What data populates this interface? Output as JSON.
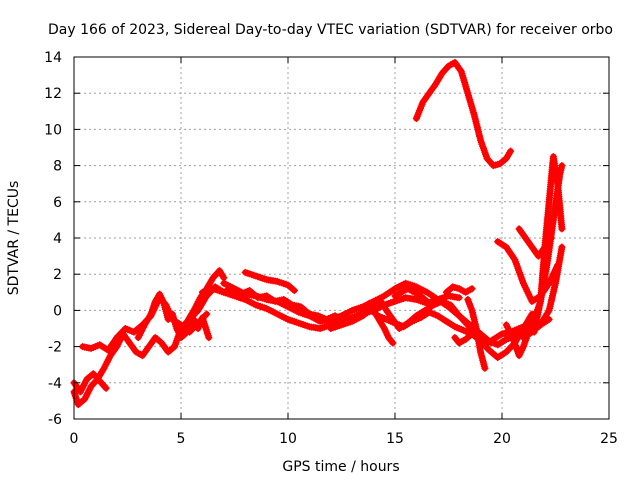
{
  "chart_data": {
    "type": "scatter",
    "title": "Day 166 of 2023, Sidereal Day-to-day VTEC variation (SDTVAR) for receiver orbo",
    "xlabel": "GPS time / hours",
    "ylabel": "SDTVAR / TECUs",
    "xlim": [
      0,
      25
    ],
    "ylim": [
      -6,
      14
    ],
    "xticks": [
      "0",
      "5",
      "10",
      "15",
      "20",
      "25"
    ],
    "yticks": [
      "-6",
      "-4",
      "-2",
      "0",
      "2",
      "4",
      "6",
      "8",
      "10",
      "12",
      "14"
    ],
    "xtick_values": [
      0,
      5,
      10,
      15,
      20,
      25
    ],
    "ytick_values": [
      -6,
      -4,
      -2,
      0,
      2,
      4,
      6,
      8,
      10,
      12,
      14
    ],
    "grid": true,
    "marker": "+",
    "color": "#ff0000",
    "traces": [
      {
        "x": [
          0.0,
          0.2,
          0.5,
          0.8,
          1.1,
          1.4,
          1.7,
          2.0,
          2.3,
          2.6,
          2.9,
          3.2,
          3.5,
          3.8,
          4.1,
          4.4,
          4.7,
          5.0,
          5.3,
          5.6,
          5.9,
          6.2,
          6.5,
          6.8,
          7.0
        ],
        "y": [
          -4.5,
          -5.2,
          -4.9,
          -4.2,
          -3.8,
          -3.2,
          -2.5,
          -2.0,
          -1.3,
          -1.8,
          -2.3,
          -2.5,
          -2.0,
          -1.5,
          -1.8,
          -2.3,
          -2.0,
          -1.0,
          -0.6,
          0.0,
          0.7,
          1.2,
          1.8,
          2.2,
          1.8
        ]
      },
      {
        "x": [
          0.0,
          0.3,
          0.6,
          0.9,
          1.2,
          1.5
        ],
        "y": [
          -4.0,
          -4.5,
          -3.8,
          -3.5,
          -3.9,
          -4.3
        ]
      },
      {
        "x": [
          0.4,
          0.8,
          1.2,
          1.6,
          2.0,
          2.4,
          2.8,
          3.2,
          3.6,
          4.0,
          4.3,
          4.6,
          5.0,
          5.4,
          5.8,
          6.2
        ],
        "y": [
          -2.0,
          -2.1,
          -1.9,
          -2.2,
          -1.5,
          -1.0,
          -1.2,
          -0.8,
          -0.3,
          0.7,
          0.3,
          -0.5,
          -0.8,
          -1.2,
          -0.7,
          -0.2
        ]
      },
      {
        "x": [
          3.0,
          3.3,
          3.6,
          3.8,
          4.0,
          4.2,
          4.4,
          4.6,
          4.8,
          5.0,
          5.2,
          5.4,
          5.6,
          5.8,
          6.0,
          6.3
        ],
        "y": [
          -1.5,
          -0.8,
          -0.2,
          0.5,
          0.9,
          0.4,
          -0.5,
          -0.2,
          -1.0,
          -1.5,
          -1.3,
          -0.8,
          -0.5,
          -1.0,
          -0.4,
          -1.5
        ]
      },
      {
        "x": [
          5.0,
          5.4,
          5.8,
          6.2,
          6.6,
          7.0,
          7.4,
          7.8,
          8.2,
          8.6,
          9.0,
          9.4,
          9.8,
          10.2,
          10.6,
          11.0,
          11.4,
          11.8,
          12.2,
          12.6,
          13.0,
          13.4,
          13.8,
          14.2,
          14.6,
          15.0,
          15.4,
          15.8,
          16.2,
          16.6,
          17.0,
          17.4,
          17.8,
          18.2,
          18.6,
          19.0,
          19.4,
          19.8,
          20.2,
          20.6,
          21.0,
          21.4,
          21.8,
          22.2
        ],
        "y": [
          -1.0,
          -0.5,
          0.0,
          0.8,
          1.3,
          1.0,
          1.2,
          0.9,
          1.1,
          0.7,
          0.8,
          0.5,
          0.6,
          0.3,
          0.2,
          -0.2,
          -0.3,
          -0.5,
          -0.3,
          -0.6,
          -0.4,
          -0.2,
          0.1,
          -0.3,
          -0.5,
          -0.7,
          -0.9,
          -0.6,
          -0.4,
          -0.1,
          -0.3,
          -0.6,
          -0.9,
          -1.1,
          -1.3,
          -1.5,
          -1.7,
          -1.9,
          -1.6,
          -1.4,
          -1.2,
          -1.0,
          -0.8,
          -0.5
        ]
      },
      {
        "x": [
          6.0,
          6.5,
          7.0,
          7.5,
          8.0,
          8.5,
          9.0,
          9.5,
          10.0,
          10.5,
          11.0,
          11.5,
          12.0,
          12.5,
          13.0,
          13.5,
          14.0,
          14.5,
          15.0,
          15.5,
          16.0,
          16.5,
          17.0,
          17.5,
          18.0
        ],
        "y": [
          1.0,
          1.2,
          1.0,
          0.8,
          0.6,
          0.3,
          0.1,
          -0.2,
          -0.5,
          -0.7,
          -0.9,
          -1.0,
          -0.8,
          -0.6,
          -0.4,
          -0.2,
          0.0,
          0.3,
          0.5,
          0.7,
          0.6,
          0.4,
          0.6,
          0.8,
          0.7
        ]
      },
      {
        "x": [
          7.0,
          7.5,
          8.0,
          8.5,
          9.0,
          9.5,
          10.0,
          10.5,
          11.0,
          11.5,
          12.0,
          12.5,
          13.0,
          13.5,
          14.0,
          14.5,
          15.0,
          15.5,
          16.0,
          16.5,
          17.0,
          17.5,
          18.0,
          18.5,
          19.0,
          19.5
        ],
        "y": [
          1.5,
          1.2,
          0.9,
          0.8,
          0.6,
          0.5,
          0.2,
          -0.1,
          -0.3,
          -0.6,
          -0.5,
          -0.3,
          0.0,
          0.2,
          0.5,
          0.8,
          1.2,
          1.5,
          1.3,
          1.0,
          0.6,
          0.2,
          -0.3,
          -0.8,
          -1.3,
          -1.8
        ]
      },
      {
        "x": [
          8.0,
          8.5,
          9.0,
          9.5,
          10.0,
          10.3
        ],
        "y": [
          2.1,
          1.9,
          1.7,
          1.6,
          1.4,
          1.1
        ]
      },
      {
        "x": [
          12.0,
          12.5,
          13.0,
          13.5,
          14.0,
          14.3,
          14.6,
          14.9,
          15.2,
          15.6,
          16.0,
          16.4,
          16.8,
          17.2,
          17.6,
          18.0,
          18.4,
          18.8,
          19.2,
          19.6,
          20.0,
          20.4,
          20.8,
          21.2
        ],
        "y": [
          -1.0,
          -0.8,
          -0.6,
          -0.3,
          0.2,
          0.6,
          0.0,
          -0.5,
          -1.0,
          -0.7,
          -0.3,
          0.0,
          0.3,
          0.5,
          0.3,
          -0.3,
          -0.8,
          -1.4,
          -1.9,
          -1.6,
          -1.3,
          -1.2,
          -1.0,
          -0.8
        ]
      },
      {
        "x": [
          13.8,
          14.1,
          14.3,
          14.5,
          14.7,
          14.9
        ],
        "y": [
          0.4,
          -0.2,
          -0.6,
          -1.0,
          -1.5,
          -1.8
        ]
      },
      {
        "x": [
          15.0,
          15.3,
          15.6,
          15.9,
          16.2,
          16.5,
          16.8
        ],
        "y": [
          0.8,
          1.0,
          1.2,
          1.0,
          0.8,
          0.5,
          0.3
        ]
      },
      {
        "x": [
          17.8,
          18.0,
          18.3,
          18.6,
          19.0,
          19.4,
          19.8,
          20.2,
          20.6,
          21.0,
          21.4
        ],
        "y": [
          -1.5,
          -1.8,
          -1.6,
          -1.3,
          -1.7,
          -2.2,
          -2.6,
          -2.3,
          -1.8,
          -1.0,
          -0.2
        ]
      },
      {
        "x": [
          18.4,
          18.6,
          18.8,
          19.0,
          19.2
        ],
        "y": [
          0.6,
          0.0,
          -1.0,
          -2.3,
          -3.2
        ]
      },
      {
        "x": [
          17.4,
          17.7,
          18.0,
          18.3,
          18.6
        ],
        "y": [
          1.0,
          1.3,
          1.2,
          1.0,
          1.2
        ]
      },
      {
        "x": [
          16.0,
          16.3,
          16.6,
          16.9,
          17.2,
          17.5,
          17.8,
          18.1,
          18.4,
          18.7,
          19.0,
          19.3,
          19.6,
          19.9,
          20.2,
          20.4
        ],
        "y": [
          10.6,
          11.5,
          12.0,
          12.5,
          13.1,
          13.5,
          13.7,
          13.2,
          12.0,
          10.8,
          9.4,
          8.4,
          8.0,
          8.1,
          8.4,
          8.8
        ]
      },
      {
        "x": [
          19.8,
          20.2,
          20.6,
          21.0,
          21.4,
          21.8,
          22.2,
          22.6
        ],
        "y": [
          3.8,
          3.5,
          2.8,
          1.5,
          0.5,
          0.8,
          1.5,
          2.5
        ]
      },
      {
        "x": [
          20.2,
          20.5,
          20.8,
          21.0,
          21.3
        ],
        "y": [
          -0.8,
          -1.5,
          -2.5,
          -2.0,
          -1.0
        ]
      },
      {
        "x": [
          20.8,
          21.1,
          21.4,
          21.7,
          22.0,
          22.3
        ],
        "y": [
          4.5,
          4.0,
          3.5,
          3.0,
          3.5,
          4.0
        ]
      },
      {
        "x": [
          21.5,
          21.8,
          22.0,
          22.2,
          22.4,
          22.6,
          22.8
        ],
        "y": [
          -1.2,
          0.5,
          3.5,
          6.0,
          8.5,
          7.0,
          4.5
        ]
      },
      {
        "x": [
          21.2,
          21.5,
          21.8,
          22.1,
          22.4,
          22.7,
          22.8
        ],
        "y": [
          -1.0,
          -0.5,
          0.5,
          2.5,
          5.0,
          7.5,
          8.0
        ]
      },
      {
        "x": [
          21.0,
          21.4,
          21.8,
          22.2,
          22.5,
          22.8
        ],
        "y": [
          -1.5,
          -1.2,
          -0.8,
          0.0,
          1.5,
          3.5
        ]
      }
    ]
  }
}
